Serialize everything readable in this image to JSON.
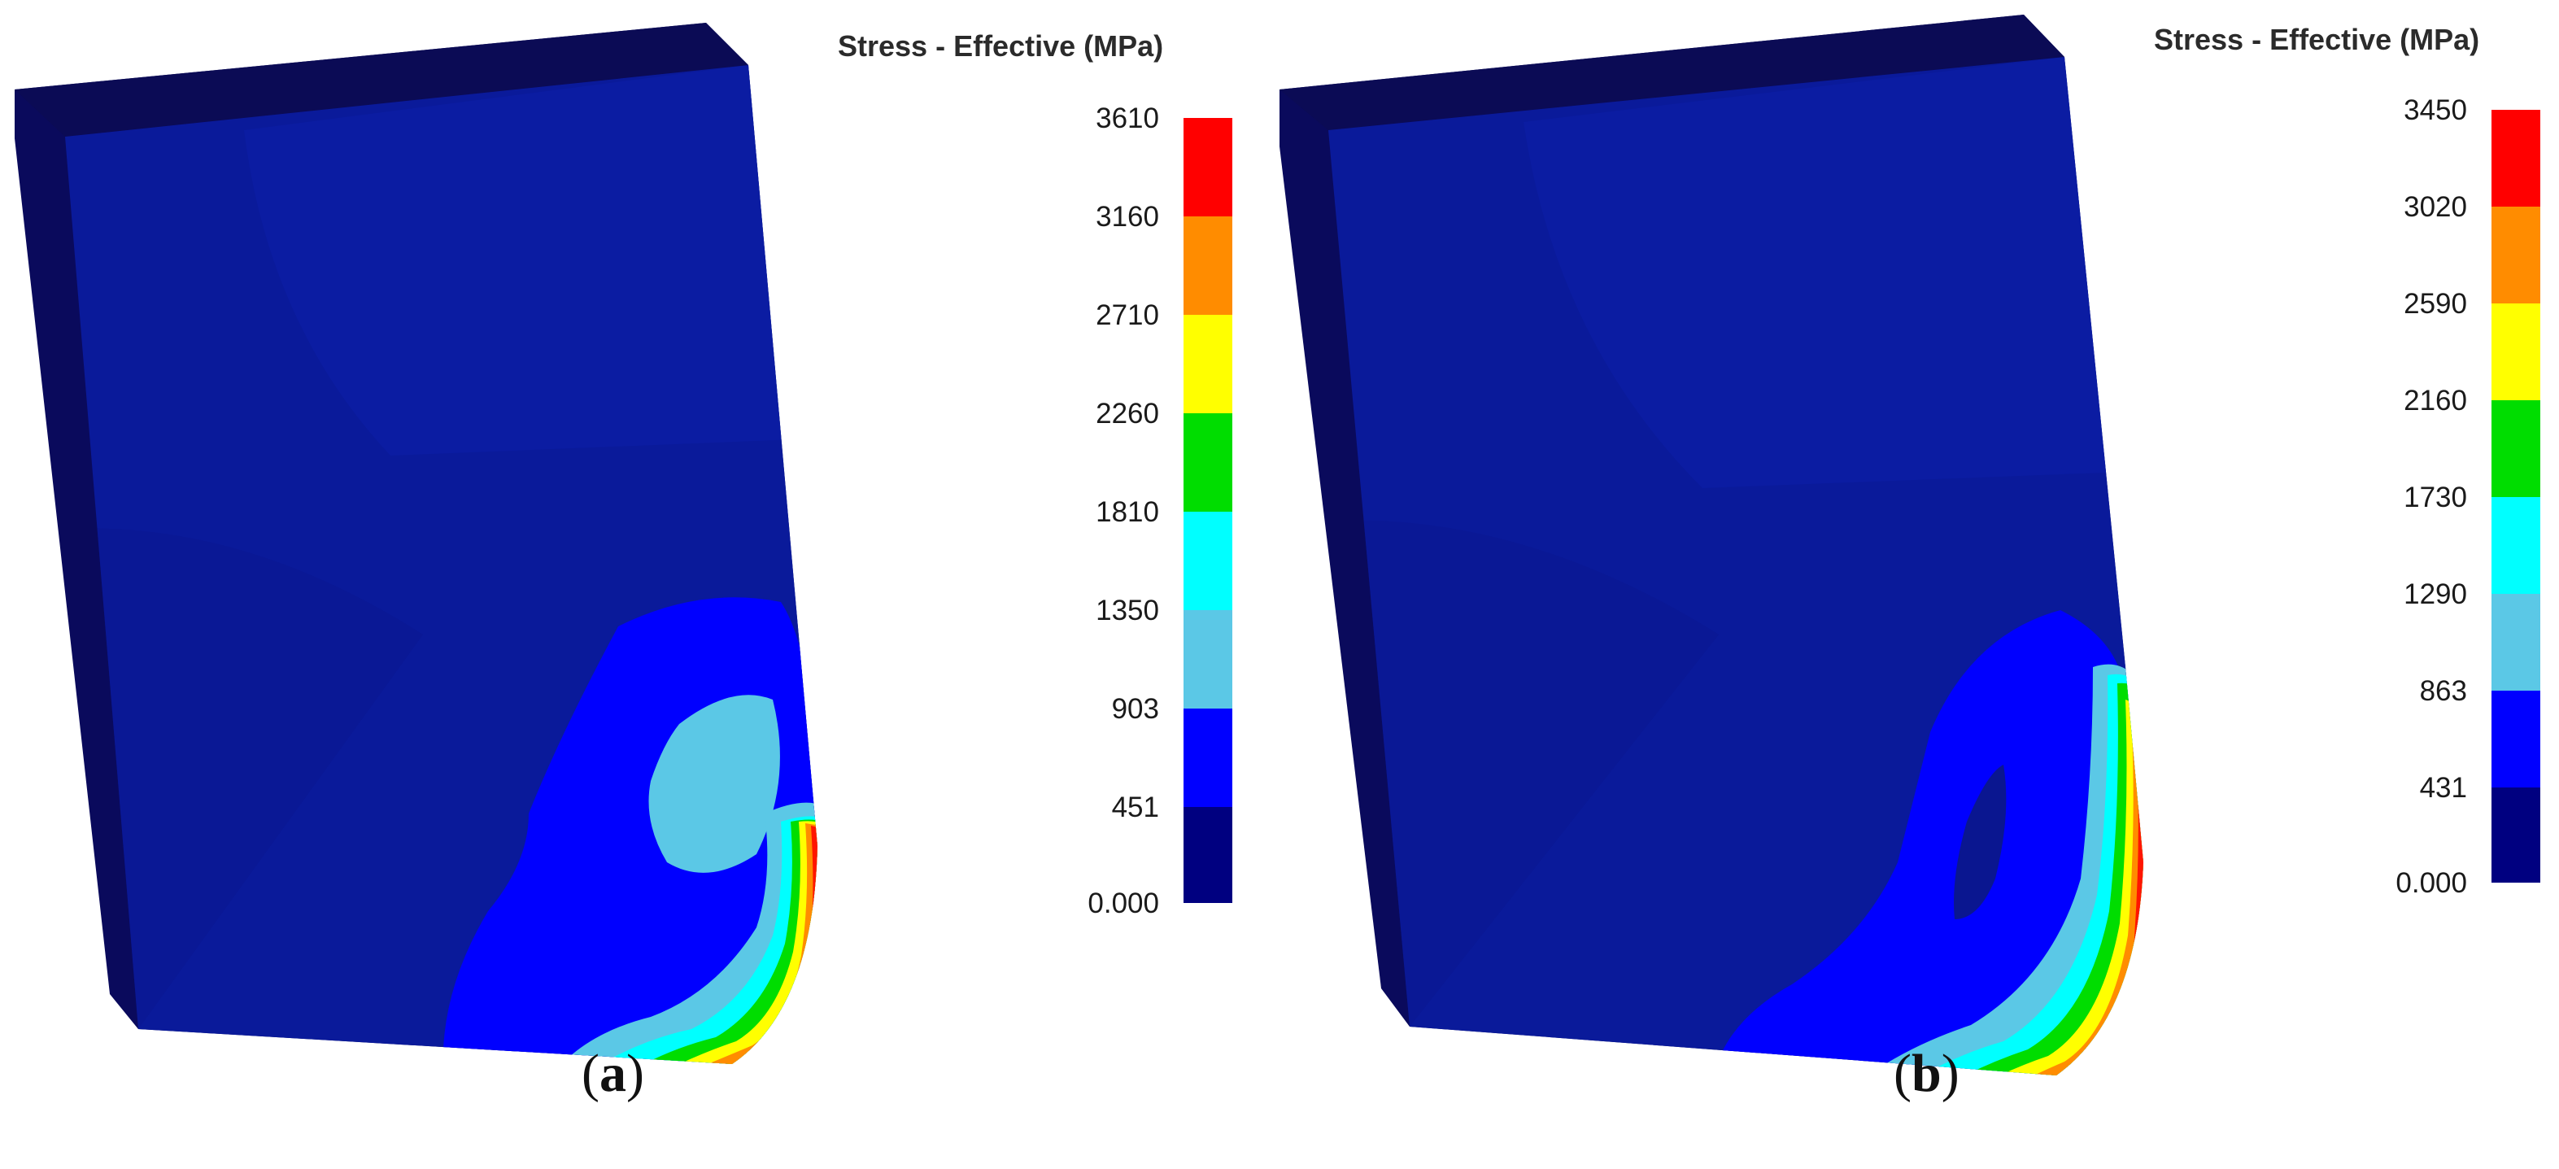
{
  "panels": [
    {
      "id": "a",
      "legend_title": "Stress - Effective (MPa)",
      "ticks": [
        "3610",
        "3160",
        "2710",
        "2260",
        "1810",
        "1350",
        "903",
        "451",
        "0.000"
      ],
      "caption_open": "(",
      "caption_letter": "a",
      "caption_close": ")"
    },
    {
      "id": "b",
      "legend_title": "Stress - Effective (MPa)",
      "ticks": [
        "3450",
        "3020",
        "2590",
        "2160",
        "1730",
        "1290",
        "863",
        "431",
        "0.000"
      ],
      "caption_open": "(",
      "caption_letter": "b",
      "caption_close": ")"
    }
  ],
  "colormap": [
    "#ff0000",
    "#ff8c00",
    "#ffff00",
    "#00dd00",
    "#00ffff",
    "#5bc8e6",
    "#0000ff",
    "#000080"
  ]
}
